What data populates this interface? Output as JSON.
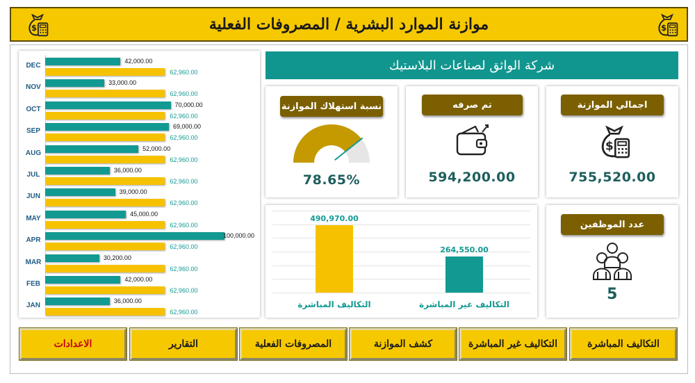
{
  "header": {
    "title": "موازنة الموارد البشرية / المصروفات الفعلية",
    "icon_left": "money-bag-calculator-icon",
    "icon_right": "money-bag-calculator-icon"
  },
  "company_name": "شركة الواثق لصناعات البلاستيك",
  "colors": {
    "teal": "#129a92",
    "gold": "#f6c200",
    "label_brown": "#7b5f00",
    "header_yellow": "#f6c800"
  },
  "kpis": {
    "total_budget": {
      "label": "اجمالي الموازنة",
      "value": "755,520.00",
      "icon": "money-bag-calculator-icon"
    },
    "spent": {
      "label": "تم صرفه",
      "value": "594,200.00",
      "icon": "wallet-icon"
    },
    "consumption": {
      "label": "نسبة استهلاك الموازنة",
      "value": "78.65%",
      "percent": 78.65,
      "icon": "gauge"
    },
    "employees": {
      "label": "عدد الموظفين",
      "value": "5",
      "icon": "people-group-icon"
    }
  },
  "chart_data": [
    {
      "type": "bar",
      "orientation": "horizontal",
      "categories": [
        "DEC",
        "NOV",
        "OCT",
        "SEP",
        "AUG",
        "JUL",
        "JUN",
        "MAY",
        "APR",
        "MAR",
        "FEB",
        "JAN"
      ],
      "series": [
        {
          "values": [
            42000,
            33000,
            70000,
            69000,
            52000,
            36000,
            39000,
            45000,
            100000,
            30200,
            42000,
            36000
          ],
          "labels": [
            "42,000.00",
            "33,000.00",
            "70,000.00",
            "69,000.00",
            "52,000.00",
            "36,000.00",
            "39,000.00",
            "45,000.00",
            "100,000.00",
            "30,200.00",
            "42,000.00",
            "36,000.00"
          ],
          "color": "#129a92"
        },
        {
          "values": [
            62960,
            62960,
            62960,
            62960,
            62960,
            62960,
            62960,
            62960,
            62960,
            62960,
            62960,
            62960
          ],
          "labels": [
            "62,960.00",
            "62,960.00",
            "62,960.00",
            "62,960.00",
            "62,960.00",
            "62,960.00",
            "62,960.00",
            "62,960.00",
            "62,960.00",
            "62,960.00",
            "62,960.00",
            "62,960.00"
          ],
          "color": "#f6c200"
        }
      ],
      "xlim": [
        0,
        100000
      ]
    },
    {
      "type": "bar",
      "categories": [
        "التكاليف المباشرة",
        "التكاليف غير المباشرة"
      ],
      "values": [
        490970,
        264550
      ],
      "labels": [
        "490,970.00",
        "264,550.00"
      ],
      "colors": [
        "#f6c200",
        "#129a92"
      ],
      "ylim": [
        0,
        600000
      ],
      "grid": true
    }
  ],
  "nav": [
    {
      "label": "التكاليف المباشرة"
    },
    {
      "label": "التكاليف غير المباشرة"
    },
    {
      "label": "كشف الموازنة"
    },
    {
      "label": "المصروفات الفعلية"
    },
    {
      "label": "التقارير"
    },
    {
      "label": "الاعدادات"
    }
  ]
}
